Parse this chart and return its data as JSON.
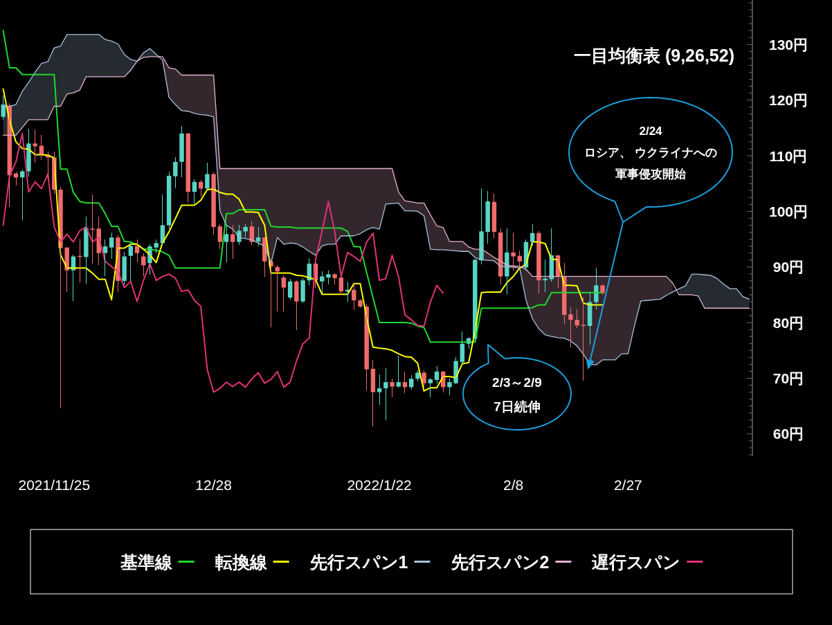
{
  "chart_data": {
    "type": "candlestick",
    "title": "一目均衡表 (9,26,52)",
    "annotations": [
      "2/24\nロシア、 ウクライナへの軍事侵攻開始",
      "2/3～2/9\n7日続伸"
    ],
    "categories": [
      null,
      null,
      null,
      null,
      null,
      null,
      null,
      null,
      "2021/11/25",
      null,
      null,
      null,
      null,
      null,
      null,
      null,
      null,
      null,
      null,
      null,
      null,
      null,
      null,
      null,
      null,
      null,
      null,
      null,
      null,
      null,
      null,
      null,
      null,
      "12/28",
      null,
      null,
      null,
      null,
      null,
      null,
      null,
      null,
      null,
      null,
      null,
      null,
      null,
      null,
      null,
      null,
      null,
      null,
      null,
      null,
      null,
      null,
      null,
      null,
      null,
      "2022/1/22",
      null,
      null,
      null,
      null,
      null,
      null,
      null,
      null,
      null,
      null,
      null,
      null,
      null,
      null,
      null,
      null,
      null,
      null,
      null,
      null,
      "2/8",
      null,
      null,
      null,
      null,
      null,
      null,
      null,
      null,
      null,
      null,
      null,
      null,
      null,
      null,
      null,
      null,
      null,
      "2/27",
      null,
      null,
      null,
      null,
      null,
      null,
      null,
      null,
      null,
      null,
      null,
      null,
      null,
      null,
      null,
      null,
      null,
      null,
      null
    ],
    "ohlc": [
      [
        117.0,
        120.8,
        116.5,
        119.2
      ],
      [
        118.9,
        119.5,
        100.8,
        106.5
      ],
      [
        106.8,
        107.2,
        104.6,
        106.1
      ],
      [
        106.1,
        107.5,
        98.4,
        107.2
      ],
      [
        107.2,
        114.9,
        106.3,
        112.2
      ],
      [
        112.2,
        114.7,
        108.7,
        111.7
      ],
      [
        111.8,
        113.7,
        109.2,
        110.2
      ],
      [
        110.2,
        110.8,
        105.6,
        109.7
      ],
      [
        109.7,
        110.8,
        103.2,
        103.9
      ],
      [
        103.9,
        104.4,
        64.6,
        93.4
      ],
      [
        93.5,
        93.6,
        85.5,
        89.4
      ],
      [
        89.4,
        92.2,
        83.9,
        91.9
      ],
      [
        92.0,
        95.1,
        87.2,
        91.8
      ],
      [
        91.8,
        99.1,
        87.0,
        97.0
      ],
      [
        96.9,
        103.0,
        90.6,
        96.7
      ],
      [
        96.9,
        99.0,
        90.3,
        92.5
      ],
      [
        92.5,
        94.9,
        88.4,
        93.7
      ],
      [
        93.5,
        96.2,
        91.5,
        95.3
      ],
      [
        95.3,
        95.8,
        85.5,
        87.5
      ],
      [
        87.5,
        92.7,
        86.7,
        91.9
      ],
      [
        92.0,
        94.6,
        87.5,
        93.8
      ],
      [
        93.8,
        94.9,
        90.8,
        92.5
      ],
      [
        91.9,
        92.5,
        88.4,
        90.3
      ],
      [
        90.7,
        94.1,
        88.6,
        93.7
      ],
      [
        93.5,
        94.9,
        92.5,
        94.3
      ],
      [
        94.3,
        103.0,
        93.9,
        97.5
      ],
      [
        97.5,
        107.2,
        96.8,
        106.4
      ],
      [
        106.3,
        109.8,
        104.1,
        108.9
      ],
      [
        108.9,
        115.3,
        106.1,
        114.0
      ],
      [
        114.0,
        114.1,
        101.5,
        103.5
      ],
      [
        103.5,
        105.8,
        101.3,
        105.3
      ],
      [
        105.3,
        105.6,
        102.7,
        104.1
      ],
      [
        104.1,
        108.7,
        103.9,
        106.7
      ],
      [
        106.7,
        107.0,
        95.8,
        97.2
      ],
      [
        97.3,
        97.7,
        93.2,
        94.5
      ],
      [
        94.5,
        97.5,
        90.8,
        95.9
      ],
      [
        95.9,
        97.5,
        91.5,
        94.5
      ],
      [
        94.5,
        97.5,
        93.9,
        96.5
      ],
      [
        96.4,
        97.7,
        95.3,
        97.2
      ],
      [
        97.3,
        98.3,
        93.9,
        94.5
      ],
      [
        94.6,
        97.2,
        93.7,
        95.3
      ],
      [
        95.3,
        95.5,
        88.2,
        91.0
      ],
      [
        91.0,
        91.5,
        79.1,
        90.1
      ],
      [
        90.0,
        90.3,
        82.0,
        89.2
      ],
      [
        88.1,
        88.5,
        82.0,
        86.3
      ],
      [
        84.5,
        87.8,
        84.1,
        87.4
      ],
      [
        87.4,
        87.6,
        78.6,
        83.8
      ],
      [
        83.8,
        88.0,
        83.5,
        87.6
      ],
      [
        87.6,
        91.6,
        86.7,
        90.6
      ],
      [
        90.6,
        90.8,
        86.2,
        87.6
      ],
      [
        87.4,
        89.2,
        85.3,
        88.3
      ],
      [
        88.1,
        89.4,
        86.9,
        88.7
      ],
      [
        88.7,
        88.9,
        86.9,
        88.0
      ],
      [
        88.1,
        88.3,
        85.0,
        85.6
      ],
      [
        85.6,
        87.4,
        83.8,
        85.9
      ],
      [
        85.9,
        87.0,
        82.3,
        84.0
      ],
      [
        84.0,
        84.3,
        82.6,
        82.9
      ],
      [
        82.9,
        83.4,
        67.8,
        71.6
      ],
      [
        71.7,
        73.3,
        61.4,
        67.5
      ],
      [
        67.5,
        70.7,
        65.2,
        68.2
      ],
      [
        68.2,
        71.8,
        62.5,
        69.3
      ],
      [
        69.3,
        69.9,
        66.6,
        68.5
      ],
      [
        68.5,
        74.1,
        68.3,
        69.3
      ],
      [
        69.3,
        71.2,
        67.3,
        68.4
      ],
      [
        68.4,
        70.6,
        67.9,
        69.9
      ],
      [
        69.9,
        71.4,
        69.5,
        71.0
      ],
      [
        71.0,
        71.4,
        68.5,
        69.1
      ],
      [
        69.1,
        70.1,
        66.6,
        69.8
      ],
      [
        69.7,
        72.2,
        69.1,
        71.2
      ],
      [
        71.2,
        71.3,
        67.4,
        68.4
      ],
      [
        68.4,
        69.9,
        67.0,
        69.3
      ],
      [
        69.1,
        73.8,
        68.9,
        73.1
      ],
      [
        72.9,
        78.4,
        72.5,
        76.2
      ],
      [
        76.2,
        77.4,
        75.3,
        77.2
      ],
      [
        77.1,
        91.5,
        76.7,
        91.3
      ],
      [
        91.2,
        104.1,
        90.5,
        96.4
      ],
      [
        96.3,
        103.6,
        94.2,
        101.8
      ],
      [
        101.7,
        103.2,
        95.2,
        96.3
      ],
      [
        96.2,
        96.9,
        86.9,
        88.3
      ],
      [
        88.3,
        97.0,
        85.1,
        92.6
      ],
      [
        92.6,
        96.2,
        89.4,
        91.9
      ],
      [
        92.0,
        92.9,
        90.1,
        91.0
      ],
      [
        89.9,
        94.9,
        89.4,
        94.5
      ],
      [
        94.5,
        97.7,
        93.8,
        96.1
      ],
      [
        96.1,
        96.5,
        85.2,
        87.6
      ],
      [
        87.6,
        91.3,
        85.5,
        87.9
      ],
      [
        87.8,
        96.9,
        87.4,
        92.1
      ],
      [
        92.1,
        92.1,
        86.2,
        88.3
      ],
      [
        88.3,
        90.7,
        79.8,
        81.4
      ],
      [
        81.5,
        82.8,
        75.5,
        80.5
      ],
      [
        80.5,
        82.4,
        79.0,
        79.5
      ],
      [
        79.6,
        84.5,
        69.6,
        79.4
      ],
      [
        79.4,
        85.5,
        76.0,
        83.7
      ],
      [
        83.7,
        89.8,
        82.4,
        86.7
      ],
      [
        86.7,
        86.9,
        85.0,
        85.3
      ],
      null,
      null,
      null,
      null,
      null,
      null,
      null,
      null,
      null,
      null,
      null,
      null,
      null,
      null,
      null,
      null,
      null,
      null,
      null,
      null,
      null,
      null,
      null
    ],
    "colors": [
      "#58d5c5",
      "#f06b6b",
      "#f06b6b",
      "#58d5c5",
      "#58d5c5",
      "#f06b6b",
      "#f06b6b",
      "#f06b6b",
      "#f06b6b",
      "#f06b6b",
      "#f06b6b",
      "#58d5c5",
      "#f06b6b",
      "#58d5c5",
      "#f06b6b",
      "#f06b6b",
      "#58d5c5",
      "#58d5c5",
      "#f06b6b",
      "#58d5c5",
      "#58d5c5",
      "#f06b6b",
      "#f06b6b",
      "#58d5c5",
      "#58d5c5",
      "#58d5c5",
      "#58d5c5",
      "#58d5c5",
      "#58d5c5",
      "#f06b6b",
      "#58d5c5",
      "#f06b6b",
      "#58d5c5",
      "#f06b6b",
      "#f06b6b",
      "#58d5c5",
      "#f06b6b",
      "#58d5c5",
      "#58d5c5",
      "#f06b6b",
      "#58d5c5",
      "#f06b6b",
      "#f06b6b",
      "#f06b6b",
      "#f06b6b",
      "#58d5c5",
      "#f06b6b",
      "#58d5c5",
      "#58d5c5",
      "#f06b6b",
      "#58d5c5",
      "#58d5c5",
      "#f06b6b",
      "#f06b6b",
      "#58d5c5",
      "#f06b6b",
      "#f06b6b",
      "#f06b6b",
      "#f06b6b",
      "#58d5c5",
      "#58d5c5",
      "#f06b6b",
      "#58d5c5",
      "#f06b6b",
      "#58d5c5",
      "#58d5c5",
      "#f06b6b",
      "#58d5c5",
      "#58d5c5",
      "#f06b6b",
      "#58d5c5",
      "#58d5c5",
      "#58d5c5",
      "#58d5c5",
      "#58d5c5",
      "#58d5c5",
      "#58d5c5",
      "#f06b6b",
      "#f06b6b",
      "#58d5c5",
      "#f06b6b",
      "#f06b6b",
      "#58d5c5",
      "#58d5c5",
      "#f06b6b",
      "#58d5c5",
      "#58d5c5",
      "#f06b6b",
      "#f06b6b",
      "#f06b6b",
      "#f06b6b",
      "#f06b6b",
      "#58d5c5",
      "#58d5c5",
      "#f06b6b",
      null,
      null,
      null,
      null,
      null,
      null,
      null,
      null,
      null,
      null,
      null,
      null,
      null,
      null,
      null,
      null,
      null,
      null,
      null,
      null,
      null,
      null,
      null
    ],
    "series": [
      {
        "name": "基準線",
        "type": "line",
        "color": "#1fd82f",
        "values": [
          132.5,
          125.8,
          125.8,
          124.6,
          124.6,
          124.6,
          124.6,
          124.6,
          124.6,
          107.6,
          107.6,
          103.4,
          101.8,
          101.5,
          101.5,
          101.5,
          99.6,
          97.3,
          97.3,
          94.6,
          94.5,
          94.0,
          93.2,
          93.2,
          93.0,
          92.7,
          92.1,
          89.8,
          89.8,
          89.8,
          89.8,
          89.8,
          89.8,
          89.8,
          89.8,
          99.6,
          99.6,
          100.3,
          100.3,
          100.3,
          100.3,
          100.3,
          97.3,
          97.2,
          97.2,
          97.2,
          97.0,
          97.0,
          97.0,
          97.0,
          97.0,
          97.0,
          97.0,
          97.0,
          96.4,
          93.7,
          93.6,
          89.0,
          84.5,
          80.0,
          80.0,
          80.0,
          80.0,
          80.0,
          79.9,
          79.4,
          79.1,
          76.5,
          76.5,
          76.5,
          76.5,
          76.5,
          76.5,
          76.5,
          76.5,
          82.6,
          82.6,
          82.6,
          82.6,
          82.6,
          82.6,
          82.6,
          82.6,
          82.7,
          83.2,
          83.2,
          85.4,
          85.4,
          85.4,
          85.4,
          85.4,
          85.4,
          85.4,
          85.4,
          85.4,
          null,
          null,
          null,
          null,
          null,
          null,
          null,
          null,
          null,
          null,
          null,
          null,
          null,
          null,
          null,
          null,
          null,
          null,
          null,
          null,
          null,
          null,
          null
        ]
      },
      {
        "name": "転換線",
        "type": "line",
        "color": "#ffff00",
        "values": [
          122.0,
          116.3,
          112.5,
          111.3,
          111.2,
          110.2,
          110.2,
          110.1,
          109.6,
          92.2,
          89.8,
          89.8,
          89.8,
          89.8,
          88.9,
          87.8,
          87.8,
          84.1,
          93.4,
          93.4,
          94.1,
          94.1,
          93.2,
          92.2,
          90.8,
          94.4,
          96.3,
          98.7,
          101.1,
          101.1,
          101.1,
          102.0,
          103.9,
          104.0,
          103.4,
          103.1,
          103.1,
          102.2,
          99.9,
          99.9,
          99.8,
          97.5,
          88.9,
          88.9,
          88.9,
          88.9,
          88.5,
          88.4,
          88.1,
          87.7,
          85.1,
          85.1,
          85.1,
          85.1,
          85.1,
          87.0,
          87.0,
          80.9,
          75.6,
          75.4,
          75.3,
          75.0,
          74.4,
          73.9,
          73.8,
          72.7,
          67.7,
          68.3,
          68.3,
          70.3,
          70.3,
          70.1,
          72.6,
          72.8,
          78.5,
          85.4,
          85.5,
          85.5,
          85.5,
          87.2,
          88.3,
          89.8,
          90.5,
          94.5,
          94.5,
          94.2,
          91.4,
          91.3,
          86.7,
          86.7,
          86.6,
          83.5,
          83.2,
          83.2,
          83.2,
          null,
          null,
          null,
          null,
          null,
          null,
          null,
          null,
          null,
          null,
          null,
          null,
          null,
          null,
          null,
          null,
          null,
          null,
          null,
          null,
          null,
          null,
          null
        ]
      },
      {
        "name": "先行スパン1",
        "type": "line",
        "color": "#a9c2dc",
        "values": [
          118.9,
          118.9,
          119.2,
          121.6,
          123.2,
          125.0,
          126.6,
          126.9,
          129.4,
          129.7,
          131.8,
          131.8,
          131.8,
          131.8,
          131.8,
          131.8,
          130.9,
          130.6,
          130.1,
          128.2,
          127.3,
          127.0,
          128.5,
          129.3,
          128.2,
          127.2,
          120.5,
          119.2,
          118.1,
          118.0,
          117.6,
          117.4,
          117.3,
          117.0,
          100.1,
          97.5,
          96.8,
          95.3,
          95.1,
          94.9,
          94.3,
          93.8,
          90.6,
          95.3,
          94.1,
          94.3,
          94.2,
          93.6,
          92.8,
          92.1,
          93.8,
          94.1,
          94.1,
          95.6,
          95.6,
          95.6,
          96.0,
          96.7,
          97.1,
          96.8,
          101.3,
          101.4,
          101.5,
          100.1,
          100.1,
          100.0,
          99.2,
          93.2,
          93.1,
          93.1,
          93.0,
          92.9,
          92.8,
          92.8,
          91.7,
          91.3,
          91.2,
          91.1,
          90.1,
          90.0,
          90.0,
          89.8,
          84.0,
          80.7,
          78.9,
          77.8,
          77.5,
          77.3,
          77.2,
          76.7,
          75.8,
          74.3,
          72.5,
          72.4,
          73.3,
          73.3,
          73.3,
          74.4,
          74.4,
          79.4,
          83.9,
          84.0,
          84.1,
          84.2,
          84.9,
          85.5,
          86.1,
          86.6,
          88.7,
          88.7,
          88.6,
          88.5,
          87.9,
          86.9,
          86.1,
          86.1,
          84.7,
          84.2
        ],
        "lower": [
          113.7,
          113.7,
          113.7,
          115.1,
          116.5,
          116.5,
          116.5,
          116.5,
          118.9,
          118.9,
          121.1,
          121.3,
          121.8,
          124.2,
          124.2,
          124.2,
          124.2,
          124.2,
          124.2,
          124.2,
          125.4,
          127.0,
          127.7,
          127.8,
          127.8,
          null,
          null,
          null,
          null,
          null,
          null,
          null,
          null,
          null,
          null,
          null,
          null,
          null,
          null,
          null,
          null,
          null,
          null,
          null,
          null,
          null,
          null,
          null,
          null,
          null,
          null,
          null,
          null,
          null,
          null,
          null,
          null,
          null,
          null,
          null,
          null,
          null,
          null,
          null,
          null,
          null,
          null,
          null,
          null,
          null,
          null,
          null,
          null,
          null,
          null,
          null,
          null,
          null,
          null,
          null,
          null,
          null,
          null,
          null,
          null,
          null,
          null,
          null,
          null,
          null,
          null,
          null,
          null,
          null,
          null,
          null,
          null,
          null,
          null,
          null,
          null,
          null,
          null,
          null,
          null,
          null,
          85.0,
          85.0,
          85.0,
          84.8,
          82.6,
          82.6,
          82.6,
          82.6,
          82.6,
          82.6,
          82.6,
          82.6
        ],
        "upper": [
          118.9,
          118.9,
          119.2,
          121.6,
          123.2,
          125.0,
          126.6,
          126.9,
          129.4,
          129.7,
          131.8,
          131.8,
          131.8,
          131.8,
          131.8,
          131.8,
          130.9,
          130.6,
          130.1,
          128.2,
          127.3,
          127.0,
          128.5,
          129.3,
          128.2,
          null,
          null,
          null,
          null,
          null,
          null,
          null,
          null,
          null,
          null,
          null,
          null,
          null,
          null,
          null,
          null,
          null,
          null,
          null,
          null,
          null,
          null,
          null,
          null,
          null,
          null,
          null,
          null,
          null,
          null,
          null,
          null,
          null,
          null,
          null,
          null,
          null,
          null,
          null,
          null,
          null,
          null,
          null,
          null,
          null,
          null,
          null,
          null,
          null,
          null,
          null,
          null,
          null,
          null,
          null,
          null,
          null,
          null,
          null,
          null,
          null,
          null,
          null,
          null,
          null,
          null,
          null,
          null,
          null,
          null,
          null,
          null,
          null,
          null,
          null,
          null,
          null,
          null,
          null,
          null,
          null,
          86.1,
          86.6,
          88.7,
          88.7,
          88.6,
          88.5,
          87.9,
          86.9,
          86.1,
          86.1,
          84.7,
          84.2
        ]
      },
      {
        "name": "先行スパン2",
        "type": "line",
        "color": "#e7b3cf",
        "values": [
          113.7,
          113.7,
          113.7,
          115.1,
          116.5,
          116.5,
          116.5,
          116.5,
          118.9,
          118.9,
          121.1,
          121.3,
          121.8,
          124.2,
          124.2,
          124.2,
          124.2,
          124.2,
          124.2,
          124.2,
          125.4,
          127.0,
          127.7,
          127.8,
          127.8,
          127.8,
          125.8,
          125.6,
          124.5,
          124.5,
          124.5,
          124.5,
          124.5,
          124.5,
          107.7,
          107.7,
          107.7,
          107.7,
          107.7,
          107.7,
          107.7,
          107.7,
          107.7,
          107.7,
          107.7,
          107.7,
          107.7,
          107.7,
          107.7,
          107.7,
          107.7,
          107.7,
          107.7,
          107.7,
          107.7,
          107.7,
          107.7,
          107.7,
          107.7,
          107.7,
          107.7,
          107.7,
          103.5,
          101.9,
          101.7,
          101.5,
          101.5,
          99.4,
          97.4,
          97.1,
          94.6,
          94.6,
          94.6,
          93.6,
          93.2,
          93.2,
          92.5,
          91.7,
          91.1,
          90.3,
          90.2,
          90.1,
          89.6,
          88.3,
          88.3,
          88.3,
          88.3,
          88.3,
          88.3,
          88.3,
          88.3,
          88.3,
          88.3,
          88.3,
          88.3,
          88.3,
          88.3,
          88.3,
          88.3,
          88.3,
          88.3,
          88.3,
          88.3,
          88.3,
          88.3,
          87.1,
          85.0,
          85.0,
          85.0,
          84.8,
          82.6,
          82.6,
          82.6,
          82.6,
          82.6,
          82.6,
          82.6,
          82.6
        ],
        "lower": [
          null,
          null,
          null,
          null,
          null,
          null,
          null,
          null,
          null,
          null,
          null,
          null,
          null,
          null,
          null,
          null,
          null,
          null,
          null,
          null,
          null,
          null,
          null,
          null,
          null,
          127.2,
          120.5,
          119.2,
          118.1,
          118.0,
          117.6,
          117.4,
          117.3,
          117.0,
          100.1,
          97.5,
          96.8,
          95.3,
          95.1,
          94.9,
          94.3,
          93.8,
          90.6,
          95.3,
          94.1,
          94.3,
          94.2,
          93.6,
          92.8,
          92.1,
          93.8,
          94.1,
          94.1,
          95.6,
          95.6,
          95.6,
          96.0,
          96.7,
          97.1,
          96.8,
          101.3,
          101.4,
          101.5,
          100.1,
          100.1,
          100.0,
          99.2,
          93.2,
          93.1,
          93.1,
          93.0,
          92.9,
          92.8,
          92.8,
          91.7,
          91.3,
          91.2,
          91.1,
          90.1,
          90.0,
          90.0,
          89.8,
          84.0,
          80.7,
          78.9,
          77.8,
          77.5,
          77.3,
          77.2,
          76.7,
          75.8,
          74.3,
          72.5,
          72.4,
          73.3,
          73.3,
          73.3,
          74.4,
          74.4,
          79.4,
          83.9,
          84.0,
          84.1,
          84.2,
          84.9,
          85.5,
          null,
          null,
          null,
          null,
          null,
          null,
          null,
          null,
          null,
          null,
          null,
          null
        ],
        "upper": [
          null,
          null,
          null,
          null,
          null,
          null,
          null,
          null,
          null,
          null,
          null,
          null,
          null,
          null,
          null,
          null,
          null,
          null,
          null,
          null,
          null,
          null,
          null,
          null,
          null,
          127.8,
          125.8,
          125.6,
          124.5,
          124.5,
          124.5,
          124.5,
          124.5,
          124.5,
          107.7,
          107.7,
          107.7,
          107.7,
          107.7,
          107.7,
          107.7,
          107.7,
          107.7,
          107.7,
          107.7,
          107.7,
          107.7,
          107.7,
          107.7,
          107.7,
          107.7,
          107.7,
          107.7,
          107.7,
          107.7,
          107.7,
          107.7,
          107.7,
          107.7,
          107.7,
          107.7,
          107.7,
          103.5,
          101.9,
          101.7,
          101.5,
          101.5,
          99.4,
          97.4,
          97.1,
          94.6,
          94.6,
          94.6,
          93.6,
          93.2,
          93.2,
          92.5,
          91.7,
          91.1,
          90.3,
          90.2,
          90.1,
          89.6,
          88.3,
          88.3,
          88.3,
          88.3,
          88.3,
          88.3,
          88.3,
          88.3,
          88.3,
          88.3,
          88.3,
          88.3,
          88.3,
          88.3,
          88.3,
          88.3,
          88.3,
          88.3,
          88.3,
          88.3,
          88.3,
          88.3,
          87.1,
          null,
          null,
          null,
          null,
          null,
          null,
          null,
          null,
          null,
          null,
          null,
          null
        ]
      },
      {
        "name": "遅行スパン",
        "type": "line",
        "color": "#e03378",
        "values": [
          97.5,
          106.4,
          108.9,
          114.0,
          103.5,
          105.3,
          104.1,
          106.7,
          97.2,
          94.5,
          95.9,
          94.5,
          96.5,
          97.2,
          94.5,
          95.3,
          91.0,
          90.1,
          89.2,
          86.3,
          87.4,
          83.8,
          87.6,
          90.6,
          87.6,
          88.3,
          88.7,
          88.0,
          85.6,
          85.9,
          84.0,
          82.9,
          71.6,
          67.5,
          68.2,
          69.3,
          68.5,
          69.3,
          68.4,
          69.9,
          71.0,
          69.1,
          69.8,
          71.2,
          68.4,
          69.3,
          73.1,
          76.2,
          77.2,
          91.3,
          96.4,
          101.8,
          96.3,
          88.3,
          92.6,
          91.9,
          91.0,
          94.5,
          96.1,
          87.6,
          87.9,
          92.1,
          88.3,
          81.4,
          80.5,
          79.5,
          79.4,
          83.7,
          86.7,
          85.3,
          null,
          null,
          null,
          null,
          null,
          null,
          null,
          null,
          null,
          null,
          null,
          null,
          null,
          null,
          null,
          null,
          null,
          null,
          null,
          null,
          null,
          null,
          null,
          null,
          null,
          null,
          null,
          null,
          null,
          null,
          null,
          null,
          null,
          null,
          null,
          null,
          null,
          null,
          null,
          null,
          null,
          null,
          null,
          null,
          null,
          null,
          null,
          null
        ]
      }
    ],
    "ylim": [
      56,
      138
    ],
    "yticks": [
      {
        "value": 56.25,
        "label": null
      },
      {
        "value": 57.5,
        "label": null
      },
      {
        "value": 58.75,
        "label": null
      },
      {
        "value": 60,
        "label": "60円"
      },
      {
        "value": 61.25,
        "label": null
      },
      {
        "value": 62.5,
        "label": null
      },
      {
        "value": 63.75,
        "label": null
      },
      {
        "value": 65,
        "label": null
      },
      {
        "value": 66.25,
        "label": null
      },
      {
        "value": 67.5,
        "label": null
      },
      {
        "value": 68.75,
        "label": null
      },
      {
        "value": 70,
        "label": "70円"
      },
      {
        "value": 71.25,
        "label": null
      },
      {
        "value": 72.5,
        "label": null
      },
      {
        "value": 73.75,
        "label": null
      },
      {
        "value": 75,
        "label": null
      },
      {
        "value": 76.25,
        "label": null
      },
      {
        "value": 77.5,
        "label": null
      },
      {
        "value": 78.75,
        "label": null
      },
      {
        "value": 80,
        "label": "80円"
      },
      {
        "value": 81.25,
        "label": null
      },
      {
        "value": 82.5,
        "label": null
      },
      {
        "value": 83.75,
        "label": null
      },
      {
        "value": 85,
        "label": null
      },
      {
        "value": 86.25,
        "label": null
      },
      {
        "value": 87.5,
        "label": null
      },
      {
        "value": 88.75,
        "label": null
      },
      {
        "value": 90,
        "label": "90円"
      },
      {
        "value": 91.25,
        "label": null
      },
      {
        "value": 92.5,
        "label": null
      },
      {
        "value": 93.75,
        "label": null
      },
      {
        "value": 95,
        "label": null
      },
      {
        "value": 96.25,
        "label": null
      },
      {
        "value": 97.5,
        "label": null
      },
      {
        "value": 98.75,
        "label": null
      },
      {
        "value": 100,
        "label": "100円"
      },
      {
        "value": 101.25,
        "label": null
      },
      {
        "value": 102.5,
        "label": null
      },
      {
        "value": 103.75,
        "label": null
      },
      {
        "value": 105,
        "label": null
      },
      {
        "value": 106.25,
        "label": null
      },
      {
        "value": 107.5,
        "label": null
      },
      {
        "value": 108.75,
        "label": null
      },
      {
        "value": 110,
        "label": "110円"
      },
      {
        "value": 111.25,
        "label": null
      },
      {
        "value": 112.5,
        "label": null
      },
      {
        "value": 113.75,
        "label": null
      },
      {
        "value": 115,
        "label": null
      },
      {
        "value": 116.25,
        "label": null
      },
      {
        "value": 117.5,
        "label": null
      },
      {
        "value": 118.75,
        "label": null
      },
      {
        "value": 120,
        "label": "120円"
      },
      {
        "value": 121.25,
        "label": null
      },
      {
        "value": 122.5,
        "label": null
      },
      {
        "value": 123.75,
        "label": null
      },
      {
        "value": 125,
        "label": null
      },
      {
        "value": 126.25,
        "label": null
      },
      {
        "value": 127.5,
        "label": null
      },
      {
        "value": 128.75,
        "label": null
      },
      {
        "value": 130,
        "label": "130円"
      },
      {
        "value": 131.25,
        "label": null
      },
      {
        "value": 132.5,
        "label": null
      },
      {
        "value": 133.75,
        "label": null
      },
      {
        "value": 135,
        "label": null
      },
      {
        "value": 136.25,
        "label": null
      },
      {
        "value": 137.5,
        "label": null
      }
    ],
    "legend": "bottom"
  }
}
